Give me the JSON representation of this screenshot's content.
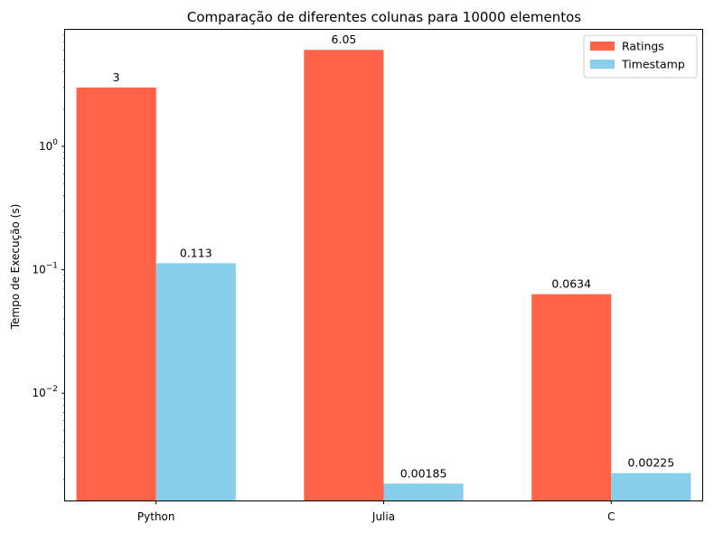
{
  "chart_data": {
    "type": "bar",
    "title": "Comparação de diferentes colunas para 10000 elementos",
    "xlabel": "",
    "ylabel": "Tempo de Execução (s)",
    "yscale": "log",
    "ylim": [
      0.00135,
      8.8
    ],
    "categories": [
      "Python",
      "Julia",
      "C"
    ],
    "series": [
      {
        "name": "Ratings",
        "color": "#FF6347",
        "values": [
          3,
          6.05,
          0.0634
        ],
        "labels": [
          "3",
          "6.05",
          "0.0634"
        ]
      },
      {
        "name": "Timestamp",
        "color": "#87CEEB",
        "values": [
          0.113,
          0.00185,
          0.00225
        ],
        "labels": [
          "0.113",
          "0.00185",
          "0.00225"
        ]
      }
    ],
    "y_ticks": [
      {
        "value": 0.01,
        "base": "10",
        "exp": "−2"
      },
      {
        "value": 0.1,
        "base": "10",
        "exp": "−1"
      },
      {
        "value": 1,
        "base": "10",
        "exp": "0"
      }
    ],
    "legend_position": "upper right",
    "grid": false
  }
}
